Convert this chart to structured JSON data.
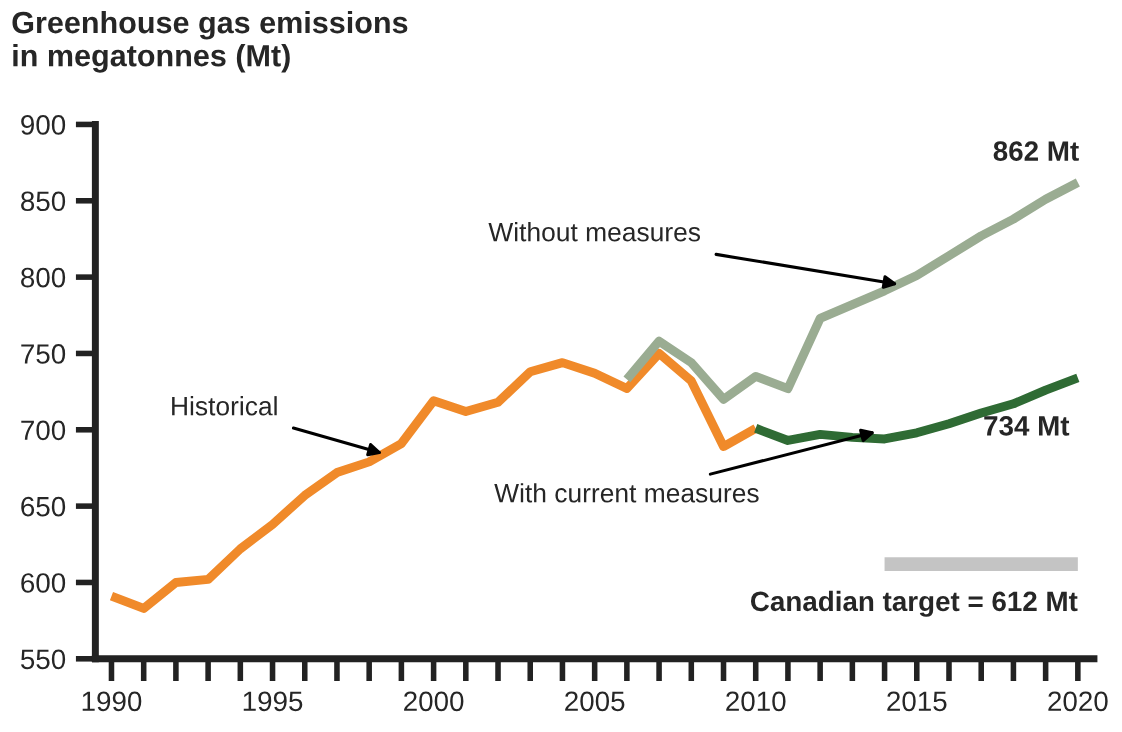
{
  "chart_data": {
    "type": "line",
    "title": "Greenhouse gas emissions\nin megatonnes (Mt)",
    "series": [
      {
        "color": "#f08a2a",
        "x": [
          1990,
          1991,
          1992,
          1993,
          1994,
          1995,
          1996,
          1997,
          1998,
          1999,
          2000,
          2001,
          2002,
          2003,
          2004,
          2005,
          2006,
          2007,
          2008,
          2009,
          2010
        ],
        "values": [
          591,
          583,
          600,
          602,
          622,
          638,
          657,
          672,
          679,
          691,
          719,
          712,
          718,
          738,
          744,
          737,
          727,
          750,
          732,
          689,
          701
        ]
      },
      {
        "color": "#9aac92",
        "x": [
          2006,
          2007,
          2008,
          2009,
          2010,
          2011,
          2012,
          2013,
          2014,
          2015,
          2016,
          2017,
          2018,
          2019,
          2020
        ],
        "values": [
          733,
          758,
          744,
          720,
          735,
          727,
          773,
          782,
          791,
          801,
          814,
          827,
          838,
          851,
          862
        ]
      },
      {
        "color": "#2f6b34",
        "x": [
          2010,
          2011,
          2012,
          2013,
          2014,
          2015,
          2016,
          2017,
          2018,
          2019,
          2020
        ],
        "values": [
          701,
          693,
          697,
          695,
          694,
          698,
          704,
          711,
          717,
          726,
          734
        ]
      },
      {
        "color": "#c4c4c4",
        "x": [
          2014,
          2020
        ],
        "values": [
          612,
          612
        ]
      }
    ],
    "annotations": [
      {
        "text": "Historical",
        "x": 1998.5,
        "y": 684
      },
      {
        "text": "Without measures",
        "x": 2014.5,
        "y": 795
      },
      {
        "text": "With current measures",
        "x": 2013.8,
        "y": 699
      },
      {
        "text": "862 Mt",
        "x": 2020,
        "y": 862
      },
      {
        "text": "734 Mt",
        "x": 2020,
        "y": 734
      },
      {
        "text": "Canadian target = 612 Mt",
        "x": 2017,
        "y": 612
      }
    ],
    "xlim": [
      1989.5,
      2020.5
    ],
    "ylim": [
      550,
      900
    ],
    "xticks": [
      1990,
      {
        "value": 1991,
        "label": null
      },
      {
        "value": 1992,
        "label": null
      },
      {
        "value": 1993,
        "label": null
      },
      {
        "value": 1994,
        "label": null
      },
      1995,
      {
        "value": 1996,
        "label": null
      },
      {
        "value": 1997,
        "label": null
      },
      {
        "value": 1998,
        "label": null
      },
      {
        "value": 1999,
        "label": null
      },
      2000,
      {
        "value": 2001,
        "label": null
      },
      {
        "value": 2002,
        "label": null
      },
      {
        "value": 2003,
        "label": null
      },
      {
        "value": 2004,
        "label": null
      },
      2005,
      {
        "value": 2006,
        "label": null
      },
      {
        "value": 2007,
        "label": null
      },
      {
        "value": 2008,
        "label": null
      },
      {
        "value": 2009,
        "label": null
      },
      2010,
      {
        "value": 2011,
        "label": null
      },
      {
        "value": 2012,
        "label": null
      },
      {
        "value": 2013,
        "label": null
      },
      {
        "value": 2014,
        "label": null
      },
      2015,
      {
        "value": 2016,
        "label": null
      },
      {
        "value": 2017,
        "label": null
      },
      {
        "value": 2018,
        "label": null
      },
      {
        "value": 2019,
        "label": null
      },
      2020
    ],
    "yticks": [
      550,
      600,
      650,
      700,
      750,
      800,
      850,
      900
    ],
    "grid": false,
    "legend": false,
    "marker": "none",
    "line_style": "solid"
  }
}
